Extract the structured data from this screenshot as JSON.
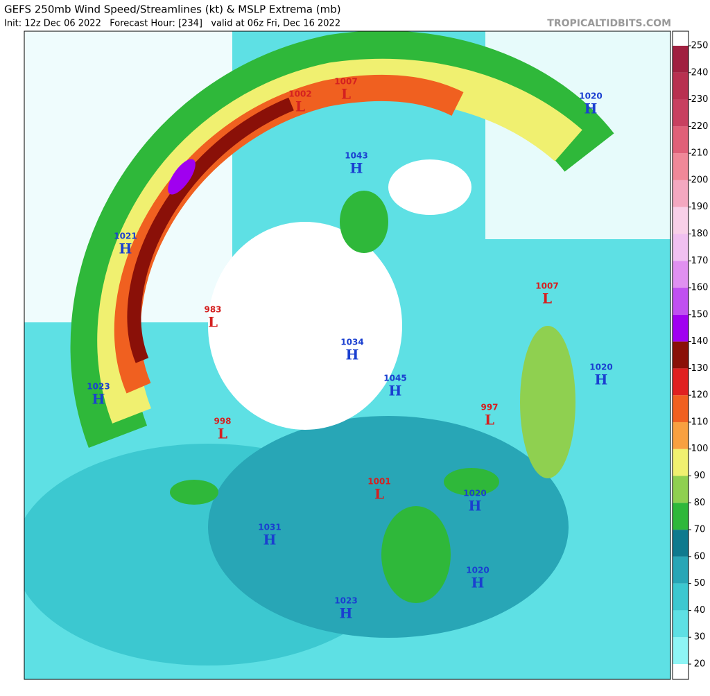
{
  "header": {
    "title": "GEFS 250mb Wind Speed/Streamlines (kt) & MSLP Extrema (mb)",
    "subtitle": "Init: 12z Dec 06 2022   Forecast Hour: [234]   valid at 06z Fri, Dec 16 2022",
    "site": "TROPICALTIDBITS.COM"
  },
  "colorbar": {
    "ticks": [
      20,
      30,
      40,
      50,
      60,
      70,
      80,
      90,
      100,
      110,
      120,
      130,
      140,
      150,
      160,
      170,
      180,
      190,
      200,
      210,
      220,
      230,
      240,
      250
    ],
    "colors": [
      "#ffffff",
      "#8ef5f5",
      "#5ee0e4",
      "#3cc8d0",
      "#28a6b6",
      "#0e7a8e",
      "#2fb83a",
      "#8fd050",
      "#f0f070",
      "#f8a040",
      "#f06020",
      "#e02020",
      "#8a1008",
      "#a000f0",
      "#c050f0",
      "#e090f0",
      "#f0c0f0",
      "#f8d0e8",
      "#f4a8c0",
      "#f08898",
      "#e06078",
      "#c84060",
      "#b83050",
      "#a02040"
    ]
  },
  "systems": [
    {
      "type": "L",
      "value": 1002
    },
    {
      "type": "L",
      "value": 1007
    },
    {
      "type": "H",
      "value": 1020
    },
    {
      "type": "H",
      "value": 1043
    },
    {
      "type": "H",
      "value": 1021
    },
    {
      "type": "L",
      "value": 1007
    },
    {
      "type": "L",
      "value": 983
    },
    {
      "type": "H",
      "value": 1034
    },
    {
      "type": "H",
      "value": 1020
    },
    {
      "type": "H",
      "value": 1023
    },
    {
      "type": "H",
      "value": 1045
    },
    {
      "type": "L",
      "value": 997
    },
    {
      "type": "L",
      "value": 998
    },
    {
      "type": "L",
      "value": 1001
    },
    {
      "type": "H",
      "value": 1020
    },
    {
      "type": "H",
      "value": 1031
    },
    {
      "type": "H",
      "value": 1020
    },
    {
      "type": "H",
      "value": 1023
    }
  ]
}
